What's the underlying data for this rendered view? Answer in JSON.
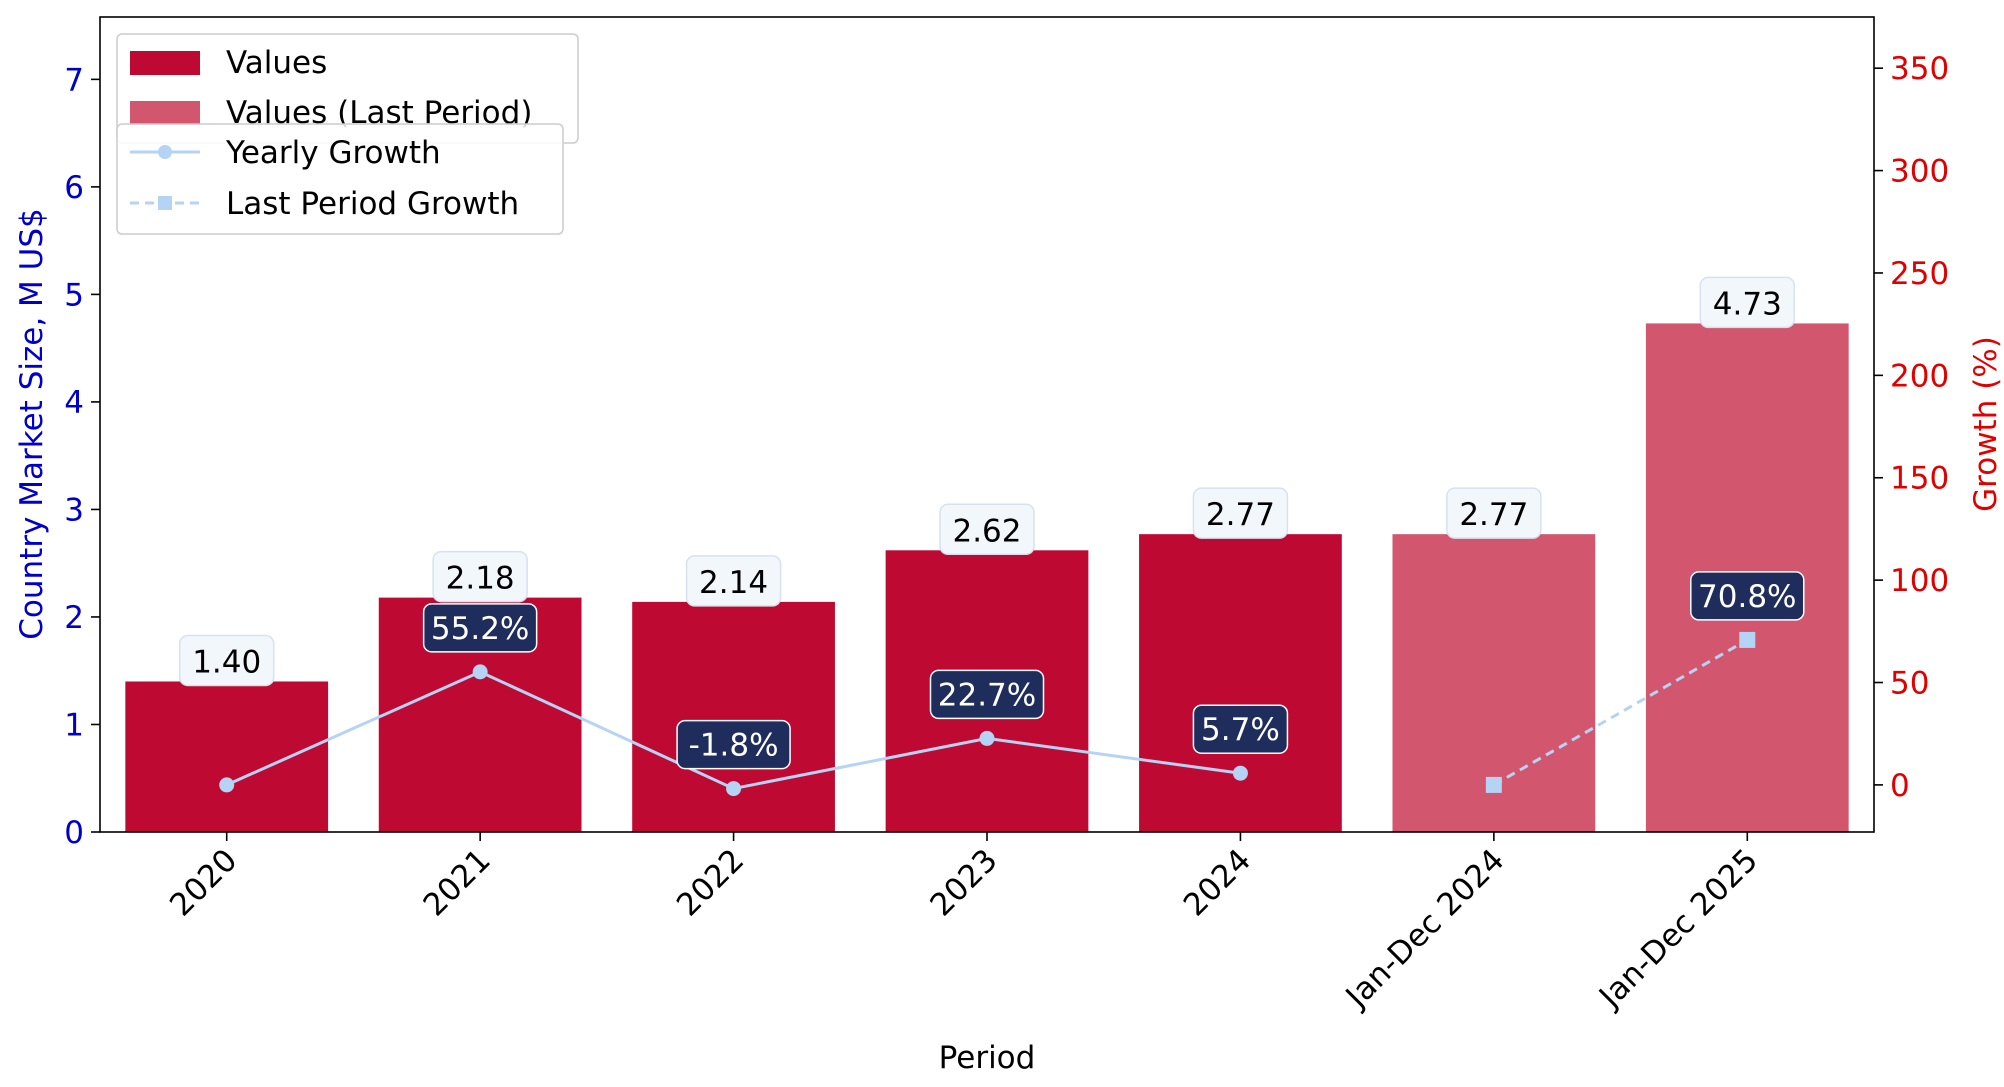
{
  "chart_data": {
    "type": "bar",
    "categories": [
      "2020",
      "2021",
      "2022",
      "2023",
      "2024",
      "Jan-Dec 2024",
      "Jan-Dec 2025"
    ],
    "values": [
      1.4,
      2.18,
      2.14,
      2.62,
      2.77,
      2.77,
      4.73
    ],
    "value_labels": [
      "1.40",
      "2.18",
      "2.14",
      "2.62",
      "2.77",
      "2.77",
      "4.73"
    ],
    "bar_series": [
      {
        "name": "Values",
        "color": "#be0a32",
        "indices": [
          0,
          1,
          2,
          3,
          4
        ]
      },
      {
        "name": "Values (Last Period)",
        "color": "#d1566e",
        "indices": [
          5,
          6
        ]
      }
    ],
    "growth_series": [
      {
        "name": "Yearly Growth",
        "style": "solid",
        "marker": "circle",
        "color": "#b5d3f5",
        "points": [
          {
            "i": 0,
            "v": 0
          },
          {
            "i": 1,
            "v": 55.2
          },
          {
            "i": 2,
            "v": -1.8
          },
          {
            "i": 3,
            "v": 22.7
          },
          {
            "i": 4,
            "v": 5.7
          }
        ],
        "labels": [
          null,
          "55.2%",
          "-1.8%",
          "22.7%",
          "5.7%"
        ]
      },
      {
        "name": "Last Period Growth",
        "style": "dashed",
        "marker": "square",
        "color": "#b5d3f5",
        "points": [
          {
            "i": 5,
            "v": 0
          },
          {
            "i": 6,
            "v": 70.8
          }
        ],
        "labels": [
          null,
          "70.8%"
        ]
      }
    ],
    "xlabel": "Period",
    "ylabel": "Country Market Size, M US$",
    "y2label": "Growth (%)",
    "ylim": [
      0,
      7.58
    ],
    "y2lim": [
      -23,
      375
    ],
    "yticks": [
      0,
      1,
      2,
      3,
      4,
      5,
      6,
      7
    ],
    "y2ticks": [
      0,
      50,
      100,
      150,
      200,
      250,
      300,
      350
    ],
    "left_axis_color": "#0000cc",
    "right_axis_color": "#e00000",
    "growth_label_bg": "#1f2d5c",
    "value_label_bg": "#f2f7fc",
    "legend_placement": "top-left",
    "grid": false
  }
}
